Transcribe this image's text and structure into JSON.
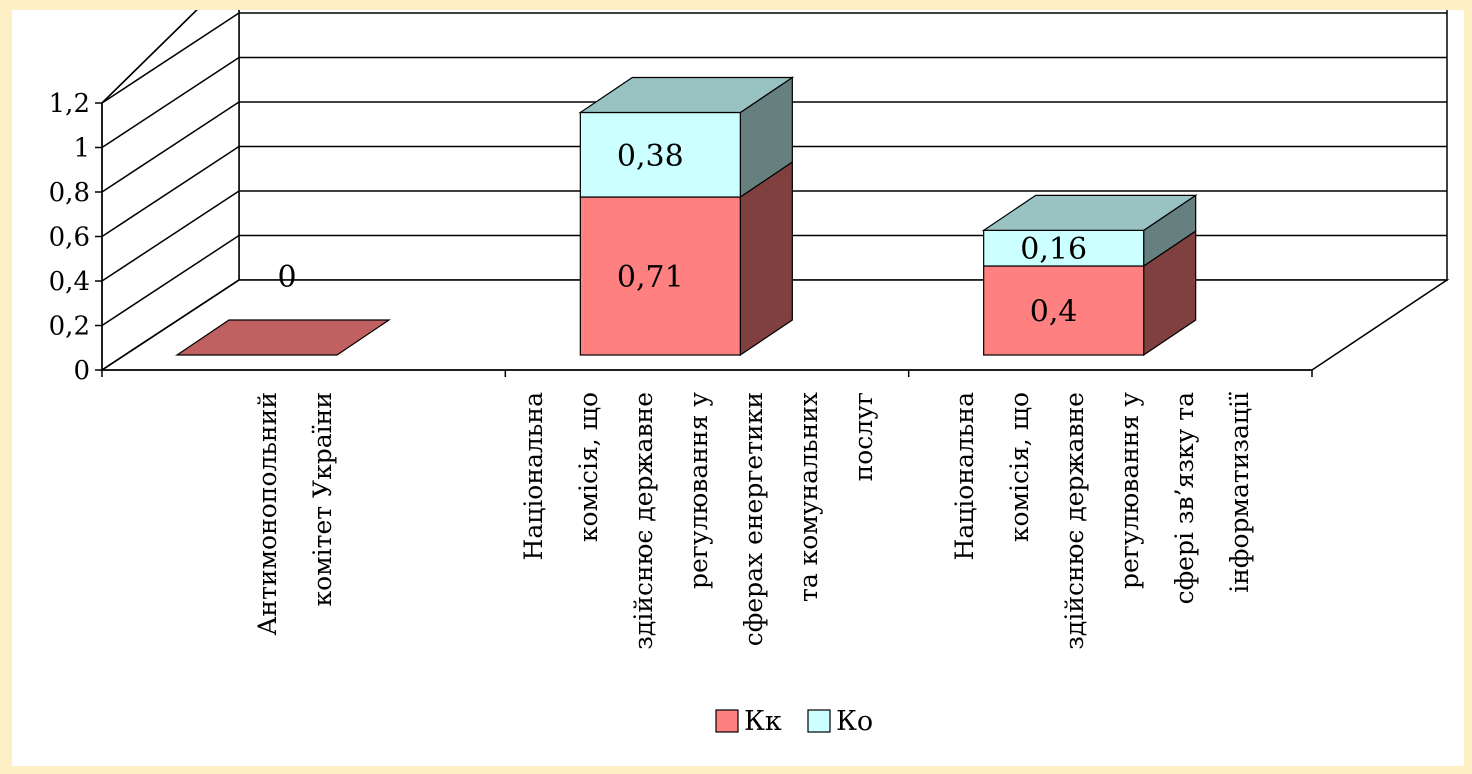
{
  "chart_data": {
    "type": "bar",
    "stacked": true,
    "three_d": true,
    "categories": [
      [
        "Антимонопольний",
        "комітет України"
      ],
      [
        "Національна",
        "комісія, що",
        "здійснює державне",
        "регулювання у",
        "сферах енергетики",
        "та комунальних",
        "послуг"
      ],
      [
        "Національна",
        "комісія, що",
        "здійснює державне",
        "регулювання у",
        "сфері зв’язку та",
        "інформатизації"
      ]
    ],
    "series": [
      {
        "name": "Кк",
        "values": [
          0,
          0.71,
          0.4
        ],
        "data_labels": [
          "0",
          "0,71",
          "0,4"
        ],
        "color": "#FF8080"
      },
      {
        "name": "Ко",
        "values": [
          0,
          0.38,
          0.16
        ],
        "data_labels": [
          "",
          "0,38",
          "0,16"
        ],
        "color": "#CCFFFF"
      }
    ],
    "y_ticks": [
      "0",
      "0,2",
      "0,4",
      "0,6",
      "0,8",
      "1",
      "1,2"
    ],
    "ylim": [
      0,
      1.2
    ],
    "grid": true,
    "legend": "bottom"
  }
}
